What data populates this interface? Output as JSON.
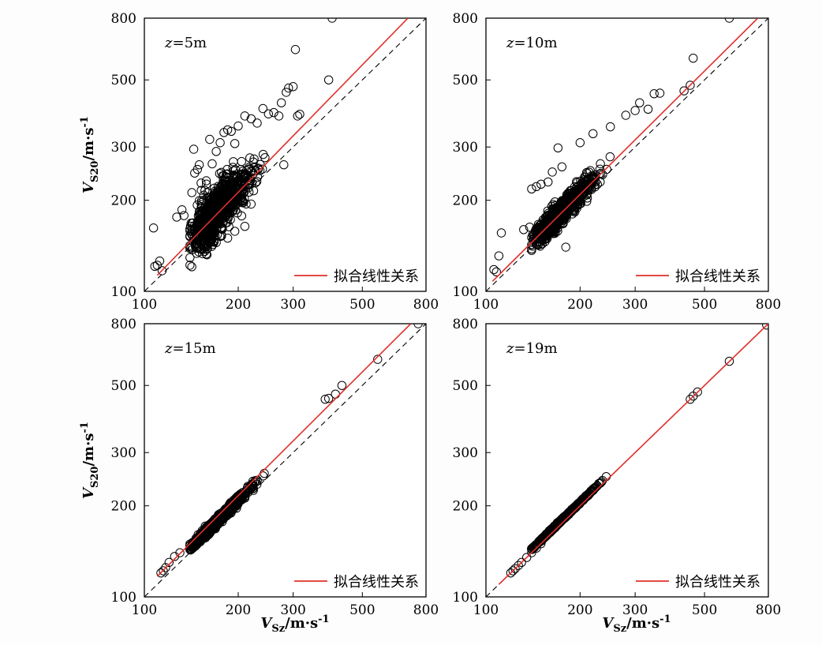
{
  "figure": {
    "ylabel_main": "V",
    "ylabel_sub": "S20",
    "ylabel_unit": "/m·s",
    "ylabel_exp": "-1",
    "xlabel_main": "V",
    "xlabel_sub": "Sz",
    "xlabel_unit": "/m·s",
    "xlabel_exp": "-1",
    "legend_label": "拟合线性关系",
    "colors": {
      "fit_line": "#e0302a",
      "reference_line": "#000000",
      "points": "#000000"
    }
  },
  "chart_data": [
    {
      "type": "scatter",
      "panel_label": "z=5m",
      "xscale": "log",
      "yscale": "log",
      "xlim": [
        100,
        800
      ],
      "ylim": [
        100,
        800
      ],
      "xticks": [
        100,
        200,
        300,
        500,
        800
      ],
      "yticks": [
        100,
        200,
        300,
        500,
        800
      ],
      "fit_line": {
        "x": [
          110,
          700
        ],
        "y": [
          113,
          800
        ]
      },
      "reference_line": "y = x",
      "legend": "拟合线性关系",
      "spread": 0.16,
      "fit_slope": 1.12,
      "points": [
        [
          107,
          162
        ],
        [
          108,
          121
        ],
        [
          110,
          122
        ],
        [
          112,
          126
        ],
        [
          114,
          117
        ],
        [
          127,
          176
        ],
        [
          132,
          186
        ],
        [
          134,
          178
        ],
        [
          142,
          212
        ],
        [
          145,
          246
        ],
        [
          144,
          295
        ],
        [
          148,
          253
        ],
        [
          150,
          262
        ],
        [
          152,
          228
        ],
        [
          155,
          208
        ],
        [
          158,
          232
        ],
        [
          162,
          318
        ],
        [
          165,
          264
        ],
        [
          170,
          290
        ],
        [
          175,
          310
        ],
        [
          180,
          335
        ],
        [
          185,
          342
        ],
        [
          190,
          338
        ],
        [
          195,
          308
        ],
        [
          200,
          352
        ],
        [
          210,
          380
        ],
        [
          220,
          372
        ],
        [
          230,
          360
        ],
        [
          240,
          402
        ],
        [
          250,
          386
        ],
        [
          260,
          390
        ],
        [
          270,
          380
        ],
        [
          275,
          420
        ],
        [
          280,
          262
        ],
        [
          285,
          455
        ],
        [
          290,
          470
        ],
        [
          300,
          475
        ],
        [
          310,
          380
        ],
        [
          315,
          385
        ],
        [
          390,
          500
        ],
        [
          305,
          630
        ],
        [
          400,
          800
        ],
        [
          160,
          150
        ],
        [
          170,
          145
        ],
        [
          185,
          150
        ],
        [
          195,
          158
        ],
        [
          210,
          164
        ],
        [
          150,
          150
        ]
      ]
    },
    {
      "type": "scatter",
      "panel_label": "z=10m",
      "xscale": "log",
      "yscale": "log",
      "xlim": [
        100,
        800
      ],
      "ylim": [
        100,
        800
      ],
      "xticks": [
        100,
        200,
        300,
        500,
        800
      ],
      "yticks": [
        100,
        200,
        300,
        500,
        800
      ],
      "fit_line": {
        "x": [
          105,
          740
        ],
        "y": [
          108,
          800
        ]
      },
      "reference_line": "y = x",
      "legend": "拟合线性关系",
      "spread": 0.075,
      "fit_slope": 1.05,
      "points": [
        [
          106,
          118
        ],
        [
          108,
          116
        ],
        [
          110,
          131
        ],
        [
          112,
          156
        ],
        [
          132,
          160
        ],
        [
          138,
          163
        ],
        [
          140,
          218
        ],
        [
          145,
          222
        ],
        [
          150,
          226
        ],
        [
          158,
          230
        ],
        [
          163,
          248
        ],
        [
          170,
          298
        ],
        [
          175,
          258
        ],
        [
          180,
          140
        ],
        [
          200,
          310
        ],
        [
          220,
          332
        ],
        [
          250,
          350
        ],
        [
          280,
          382
        ],
        [
          300,
          396
        ],
        [
          310,
          420
        ],
        [
          330,
          400
        ],
        [
          345,
          450
        ],
        [
          360,
          452
        ],
        [
          430,
          460
        ],
        [
          450,
          480
        ],
        [
          460,
          590
        ],
        [
          600,
          800
        ]
      ]
    },
    {
      "type": "scatter",
      "panel_label": "z=15m",
      "xscale": "log",
      "yscale": "log",
      "xlim": [
        100,
        800
      ],
      "ylim": [
        100,
        800
      ],
      "xticks": [
        100,
        200,
        300,
        500,
        800
      ],
      "yticks": [
        100,
        200,
        300,
        500,
        800
      ],
      "fit_line": {
        "x": [
          110,
          715
        ],
        "y": [
          117,
          800
        ]
      },
      "reference_line": "y = x",
      "legend": "拟合线性关系",
      "spread": 0.028,
      "fit_slope": 1.03,
      "points": [
        [
          113,
          120
        ],
        [
          115,
          122
        ],
        [
          117,
          125
        ],
        [
          120,
          130
        ],
        [
          125,
          136
        ],
        [
          130,
          140
        ],
        [
          140,
          148
        ],
        [
          145,
          150
        ],
        [
          150,
          156
        ],
        [
          380,
          450
        ],
        [
          390,
          453
        ],
        [
          410,
          468
        ],
        [
          430,
          500
        ],
        [
          560,
          610
        ],
        [
          755,
          800
        ]
      ]
    },
    {
      "type": "scatter",
      "panel_label": "z=19m",
      "xscale": "log",
      "yscale": "log",
      "xlim": [
        100,
        800
      ],
      "ylim": [
        100,
        800
      ],
      "xticks": [
        100,
        200,
        300,
        500,
        800
      ],
      "yticks": [
        100,
        200,
        300,
        500,
        800
      ],
      "fit_line": {
        "x": [
          110,
          800
        ],
        "y": [
          110,
          800
        ]
      },
      "reference_line": "y = x",
      "legend": "拟合线性关系",
      "spread": 0.006,
      "fit_slope": 1.0,
      "points": [
        [
          120,
          120
        ],
        [
          122,
          122
        ],
        [
          124,
          124
        ],
        [
          127,
          127
        ],
        [
          130,
          130
        ],
        [
          135,
          135
        ],
        [
          140,
          140
        ],
        [
          145,
          145
        ],
        [
          150,
          150
        ],
        [
          450,
          450
        ],
        [
          460,
          461
        ],
        [
          475,
          476
        ],
        [
          600,
          601
        ],
        [
          790,
          792
        ]
      ]
    }
  ]
}
